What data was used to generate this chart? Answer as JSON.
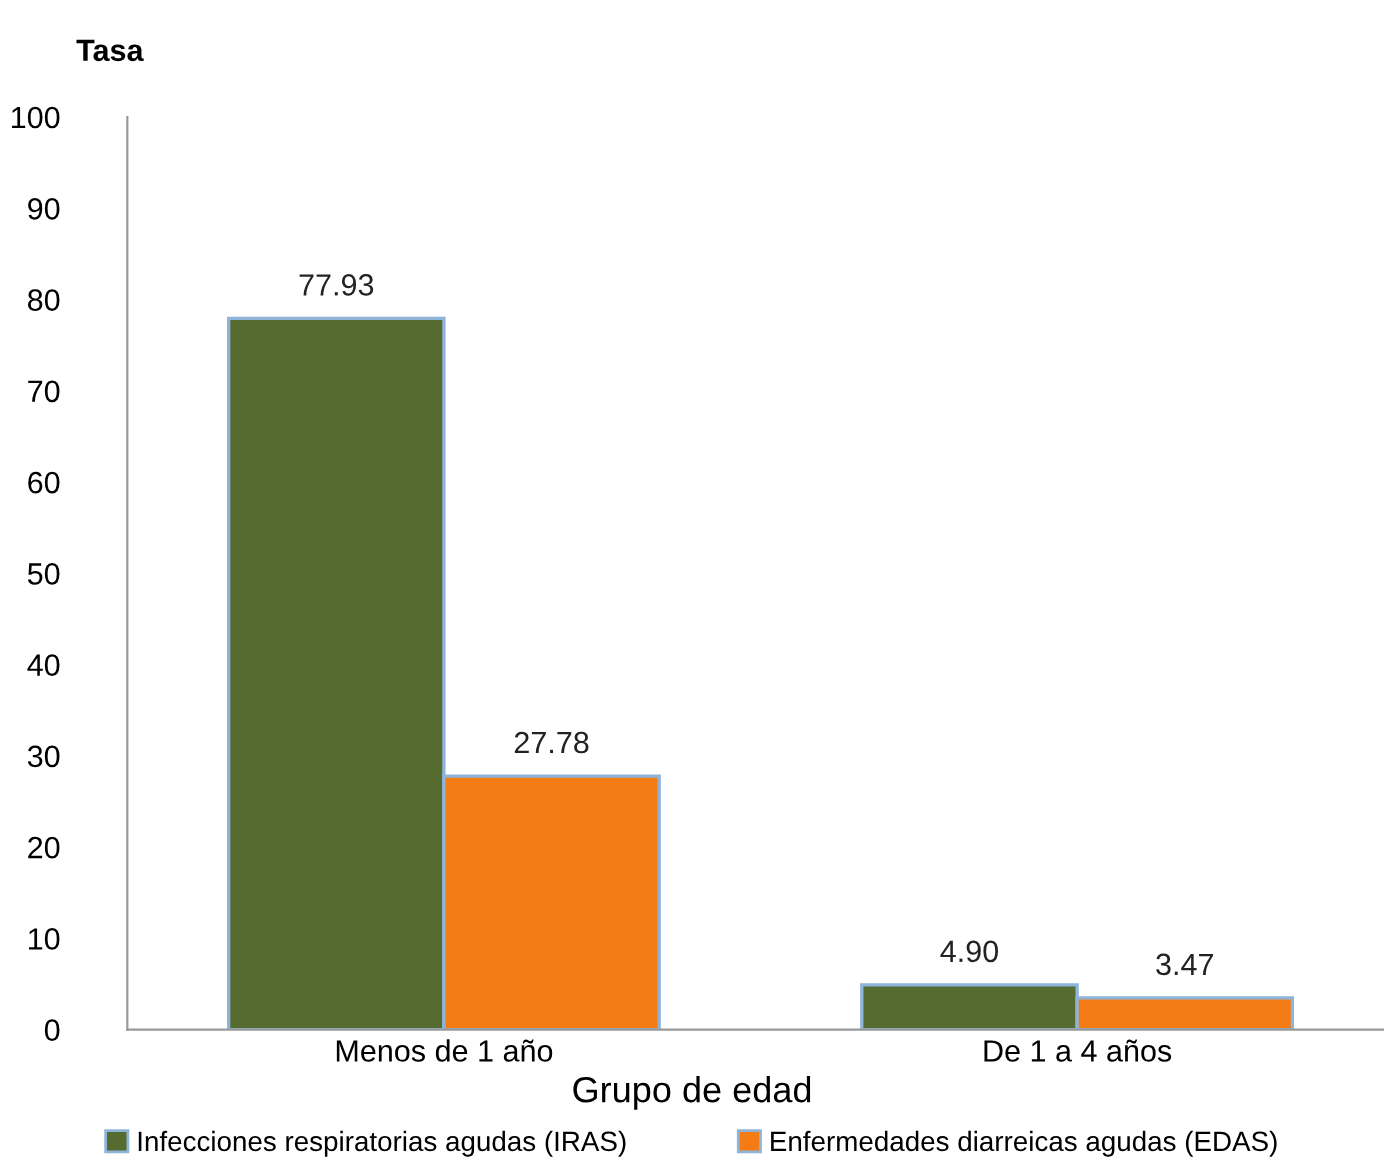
{
  "chart_data": {
    "type": "bar",
    "ylabel": "Tasa",
    "xlabel": "Grupo de edad",
    "categories": [
      "Menos de 1 año",
      "De 1 a 4 años"
    ],
    "series": [
      {
        "name": "Infecciones respiratorias agudas (IRAS)",
        "color": "#556b2f",
        "values": [
          77.93,
          4.9
        ],
        "value_labels": [
          "77.93",
          "4.90"
        ]
      },
      {
        "name": "Enfermedades diarreicas agudas (EDAS)",
        "color": "#f57c14",
        "values": [
          27.78,
          3.47
        ],
        "value_labels": [
          "27.78",
          "3.47"
        ]
      }
    ],
    "ylim": [
      0,
      100
    ],
    "yticks": [
      0,
      10,
      20,
      30,
      40,
      50,
      60,
      70,
      80,
      90,
      100
    ],
    "grid": false,
    "legend": "bottom"
  }
}
